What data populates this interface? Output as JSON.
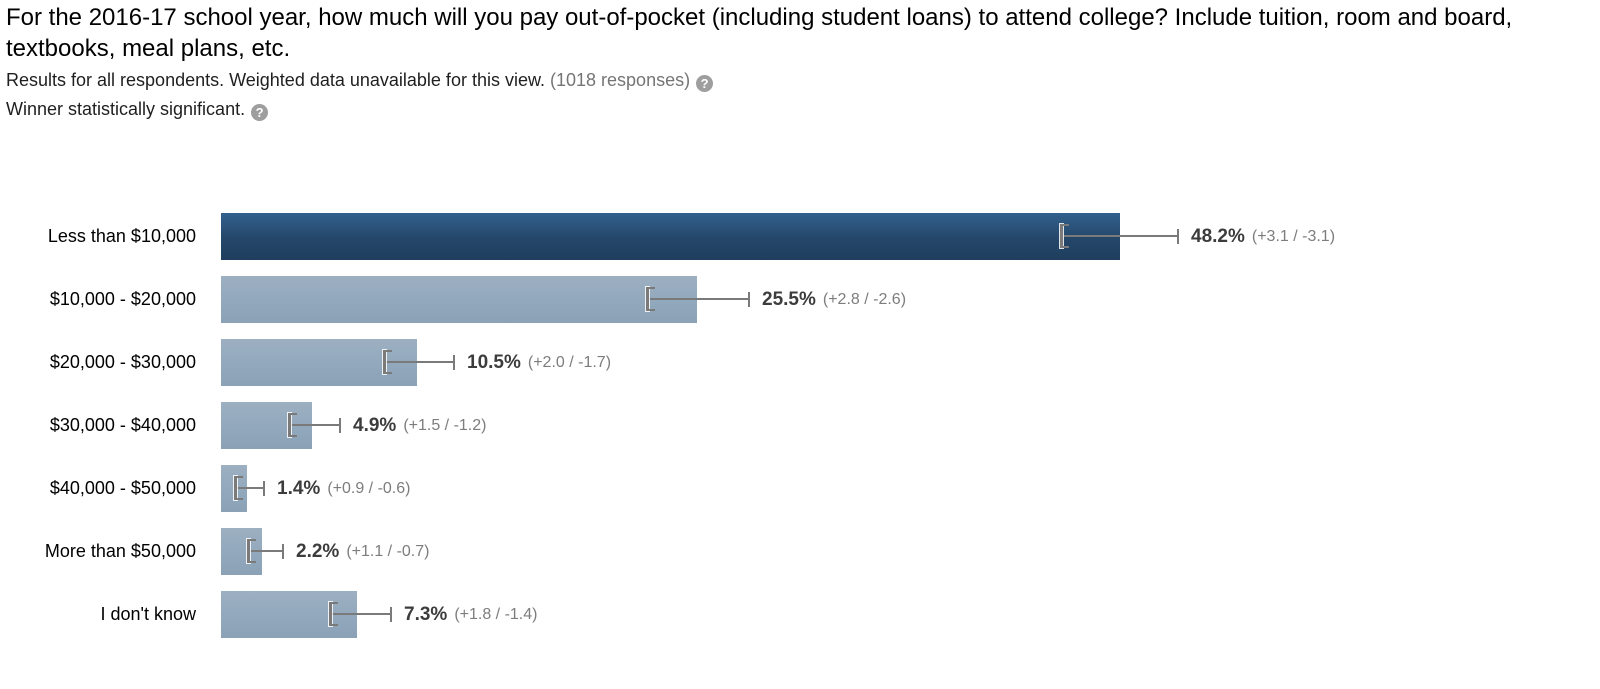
{
  "header": {
    "title": "For the 2016-17 school year, how much will you pay out-of-pocket (including student loans) to attend college? Include tuition, room and board, textbooks, meal plans, etc.",
    "subtitle_main": "Results for all respondents. Weighted data unavailable for this view.",
    "subtitle_responses": "(1018 responses)",
    "significance_note": "Winner statistically significant.",
    "help_icon_glyph": "?"
  },
  "colors": {
    "winner_bar_top": "#33608d",
    "winner_bar_mid": "#24476a",
    "winner_bar_bottom": "#1f3e5d",
    "bar_top": "#9db0c2",
    "bar_mid": "#92a8bc",
    "bar_bottom": "#8ba1b5",
    "error_bar": "#7a7a7a",
    "percent_text": "#3c3c3c",
    "ci_text": "#7d7d7d"
  },
  "chart_data": {
    "type": "bar",
    "orientation": "horizontal",
    "title": "For the 2016-17 school year, how much will you pay out-of-pocket (including student loans) to attend college? Include tuition, room and board, textbooks, meal plans, etc.",
    "categories": [
      "Less than $10,000",
      "$10,000 - $20,000",
      "$20,000 - $30,000",
      "$30,000 - $40,000",
      "$40,000 - $50,000",
      "More than $50,000",
      "I don't know"
    ],
    "values": [
      48.2,
      25.5,
      10.5,
      4.9,
      1.4,
      2.2,
      7.3
    ],
    "error_plus": [
      3.1,
      2.8,
      2.0,
      1.5,
      0.9,
      1.1,
      1.8
    ],
    "error_minus": [
      3.1,
      2.6,
      1.7,
      1.2,
      0.6,
      0.7,
      1.4
    ],
    "value_labels": [
      "48.2%",
      "25.5%",
      "10.5%",
      "4.9%",
      "1.4%",
      "2.2%",
      "7.3%"
    ],
    "ci_labels": [
      "(+3.1 / -3.1)",
      "(+2.8 / -2.6)",
      "(+2.0 / -1.7)",
      "(+1.5 / -1.2)",
      "(+0.9 / -0.6)",
      "(+1.1 / -0.7)",
      "(+1.8 / -1.4)"
    ],
    "winner_index": 0,
    "unit": "%",
    "axis_visible": false,
    "grid": false,
    "legend": false,
    "error_bars": true
  }
}
